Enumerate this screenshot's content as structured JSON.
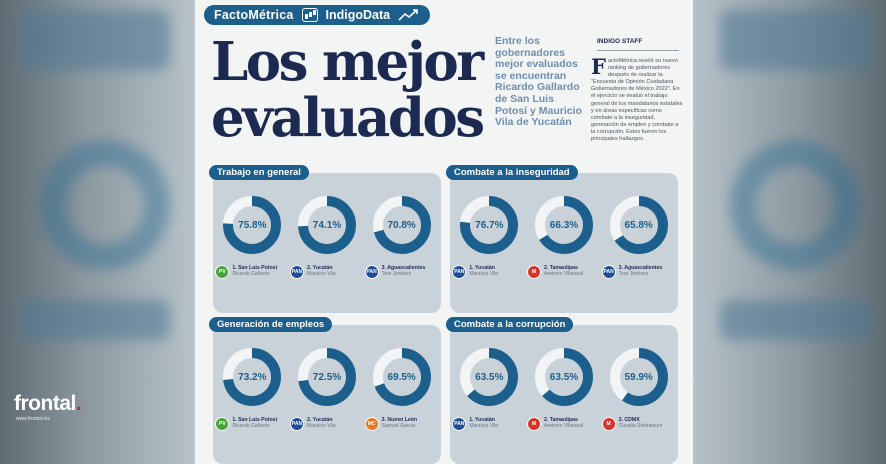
{
  "header": {
    "brand_left": "FactoMétrica",
    "brand_right": "IndigoData"
  },
  "title_line1": "Los mejor",
  "title_line2": "evaluados",
  "subtitle": "Entre los gobernadores mejor evaluados se encuentran Ricardo Gallardo de San Luis Potosí y Mauricio Vila de Yucatán",
  "staff": "INDIGO STAFF",
  "body_dropcap": "F",
  "body_text": "actoMétrica reveló su nuevo ranking de gobernadores después de realizar la “Encuesta de Opinión Ciudadana Gobernadores de México 2022”. En el ejercicio se evaluó el trabajo general de los mandatarios estatales y en áreas específicas como combate a la inseguridad, generación de empleo y combate a la corrupción. Estos fueron los principales hallazgos.",
  "colors": {
    "primary": "#1d5f8c",
    "ring_empty": "#f2f4f5",
    "panel": "#c8d2d8",
    "title": "#1c2a52",
    "subtitle": "#6f8fb0"
  },
  "panels": [
    {
      "title": "Trabajo en general",
      "items": [
        {
          "value": 75.8,
          "label": "75.8%",
          "pos": "1. San Luis Potosí",
          "who": "Ricardo Gallardo",
          "party": "pvem",
          "party_label": "PV"
        },
        {
          "value": 74.1,
          "label": "74.1%",
          "pos": "2. Yucatán",
          "who": "Mauricio Vila",
          "party": "pan",
          "party_label": "PAN"
        },
        {
          "value": 70.8,
          "label": "70.8%",
          "pos": "3. Aguascalientes",
          "who": "Tere Jiménez",
          "party": "pan",
          "party_label": "PAN"
        }
      ]
    },
    {
      "title": "Combate a la inseguridad",
      "items": [
        {
          "value": 76.7,
          "label": "76.7%",
          "pos": "1. Yucatán",
          "who": "Mauricio Vila",
          "party": "pan",
          "party_label": "PAN"
        },
        {
          "value": 66.3,
          "label": "66.3%",
          "pos": "2. Tamaulipas",
          "who": "Américo Villarreal",
          "party": "pri",
          "party_label": "M"
        },
        {
          "value": 65.8,
          "label": "65.8%",
          "pos": "3. Aguascalientes",
          "who": "Tere Jiménez",
          "party": "pan",
          "party_label": "PAN"
        }
      ]
    },
    {
      "title": "Generación de empleos",
      "items": [
        {
          "value": 73.2,
          "label": "73.2%",
          "pos": "1. San Luis Potosí",
          "who": "Ricardo Gallardo",
          "party": "pvem",
          "party_label": "PV"
        },
        {
          "value": 72.5,
          "label": "72.5%",
          "pos": "2. Yucatán",
          "who": "Mauricio Vila",
          "party": "pan",
          "party_label": "PAN"
        },
        {
          "value": 69.5,
          "label": "69.5%",
          "pos": "3. Nuevo León",
          "who": "Samuel García",
          "party": "mc",
          "party_label": "MC"
        }
      ]
    },
    {
      "title": "Combate a la corrupción",
      "items": [
        {
          "value": 63.5,
          "label": "63.5%",
          "pos": "1. Yucatán",
          "who": "Mauricio Vila",
          "party": "pan",
          "party_label": "PAN"
        },
        {
          "value": 63.5,
          "label": "63.5%",
          "pos": "2. Tamaulipas",
          "who": "Américo Villarreal",
          "party": "pri",
          "party_label": "M"
        },
        {
          "value": 59.9,
          "label": "59.9%",
          "pos": "3. CDMX",
          "who": "Claudia Sheinbaum",
          "party": "pri",
          "party_label": "M"
        }
      ]
    }
  ],
  "watermark": {
    "name": "frontal",
    "dot": ".",
    "url": "www.frontal.mx"
  }
}
